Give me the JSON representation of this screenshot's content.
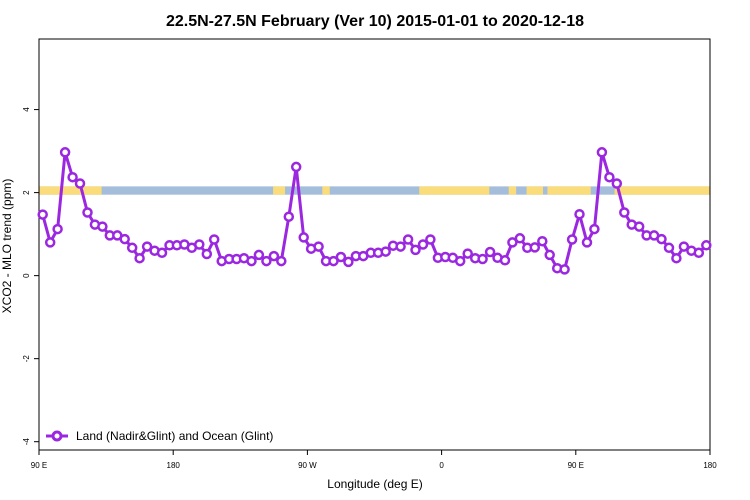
{
  "chart_data": {
    "type": "line",
    "title": "22.5N-27.5N February (Ver 10)   2015-01-01 to 2020-12-18",
    "xlabel": "Longitude (deg E)",
    "ylabel": "XCO2 - MLO trend (ppm)",
    "x_ticks": [
      {
        "value": 90,
        "label": "90 E"
      },
      {
        "value": 180,
        "label": "180"
      },
      {
        "value": 270,
        "label": "90 W"
      },
      {
        "value": 360,
        "label": "0"
      },
      {
        "value": 450,
        "label": "90 E"
      },
      {
        "value": 540,
        "label": "180"
      }
    ],
    "y_ticks": [
      {
        "value": -4,
        "label": "-4"
      },
      {
        "value": -2,
        "label": "-2"
      },
      {
        "value": 0,
        "label": "0"
      },
      {
        "value": 2,
        "label": "2"
      },
      {
        "value": 4,
        "label": "4"
      }
    ],
    "xlim": [
      90,
      540
    ],
    "ylim": [
      -4.2,
      5.7
    ],
    "grid": false,
    "legend_position": "bottom-left",
    "surface_band": {
      "y_range": [
        1.95,
        2.15
      ],
      "ocean_color": "#a4bddb",
      "land_color": "#fbdc7b",
      "land_x_ranges": [
        [
          90,
          132
        ],
        [
          247,
          255
        ],
        [
          280,
          285
        ],
        [
          345,
          392
        ],
        [
          405,
          410
        ],
        [
          417,
          428
        ],
        [
          431,
          460
        ],
        [
          476,
          540
        ]
      ]
    },
    "series": [
      {
        "name": "Land (Nadir&Glint) and Ocean (Glint)",
        "color": "#9b27e0",
        "x": [
          92.5,
          97.5,
          102.5,
          107.5,
          112.5,
          117.5,
          122.5,
          127.5,
          132.5,
          137.5,
          142.5,
          147.5,
          152.5,
          157.5,
          162.5,
          167.5,
          172.5,
          177.5,
          182.5,
          187.5,
          192.5,
          197.5,
          202.5,
          207.5,
          212.5,
          217.5,
          222.5,
          227.5,
          232.5,
          237.5,
          242.5,
          247.5,
          252.5,
          257.5,
          262.5,
          267.5,
          272.5,
          277.5,
          282.5,
          287.5,
          292.5,
          297.5,
          302.5,
          307.5,
          312.5,
          317.5,
          322.5,
          327.5,
          332.5,
          337.5,
          342.5,
          347.5,
          352.5,
          357.5,
          362.5,
          367.5,
          372.5,
          377.5,
          382.5,
          387.5,
          392.5,
          397.5,
          402.5,
          407.5,
          412.5,
          417.5,
          422.5,
          427.5,
          432.5,
          437.5,
          442.5,
          447.5,
          452.5,
          457.5,
          462.5,
          467.5,
          472.5,
          477.5,
          482.5,
          487.5,
          492.5,
          497.5,
          502.5,
          507.5,
          512.5,
          517.5,
          522.5,
          527.5,
          532.5,
          537.5
        ],
        "values": [
          1.47,
          0.8,
          1.12,
          2.97,
          2.37,
          2.22,
          1.52,
          1.23,
          1.18,
          0.97,
          0.97,
          0.88,
          0.67,
          0.42,
          0.7,
          0.6,
          0.55,
          0.73,
          0.73,
          0.75,
          0.67,
          0.75,
          0.52,
          0.87,
          0.35,
          0.4,
          0.4,
          0.42,
          0.35,
          0.5,
          0.35,
          0.47,
          0.35,
          1.42,
          2.62,
          0.92,
          0.65,
          0.7,
          0.35,
          0.35,
          0.45,
          0.33,
          0.47,
          0.47,
          0.55,
          0.55,
          0.58,
          0.72,
          0.7,
          0.87,
          0.62,
          0.75,
          0.87,
          0.43,
          0.45,
          0.43,
          0.35,
          0.53,
          0.42,
          0.4,
          0.57,
          0.43,
          0.37,
          0.8,
          0.9,
          0.67,
          0.68,
          0.83,
          0.5,
          0.18,
          0.15,
          0.87,
          1.48,
          0.8,
          1.12,
          2.97,
          2.37,
          2.22,
          1.52,
          1.23,
          1.18,
          0.97,
          0.97,
          0.88,
          0.67,
          0.42,
          0.7,
          0.6,
          0.55,
          0.73
        ]
      }
    ]
  }
}
